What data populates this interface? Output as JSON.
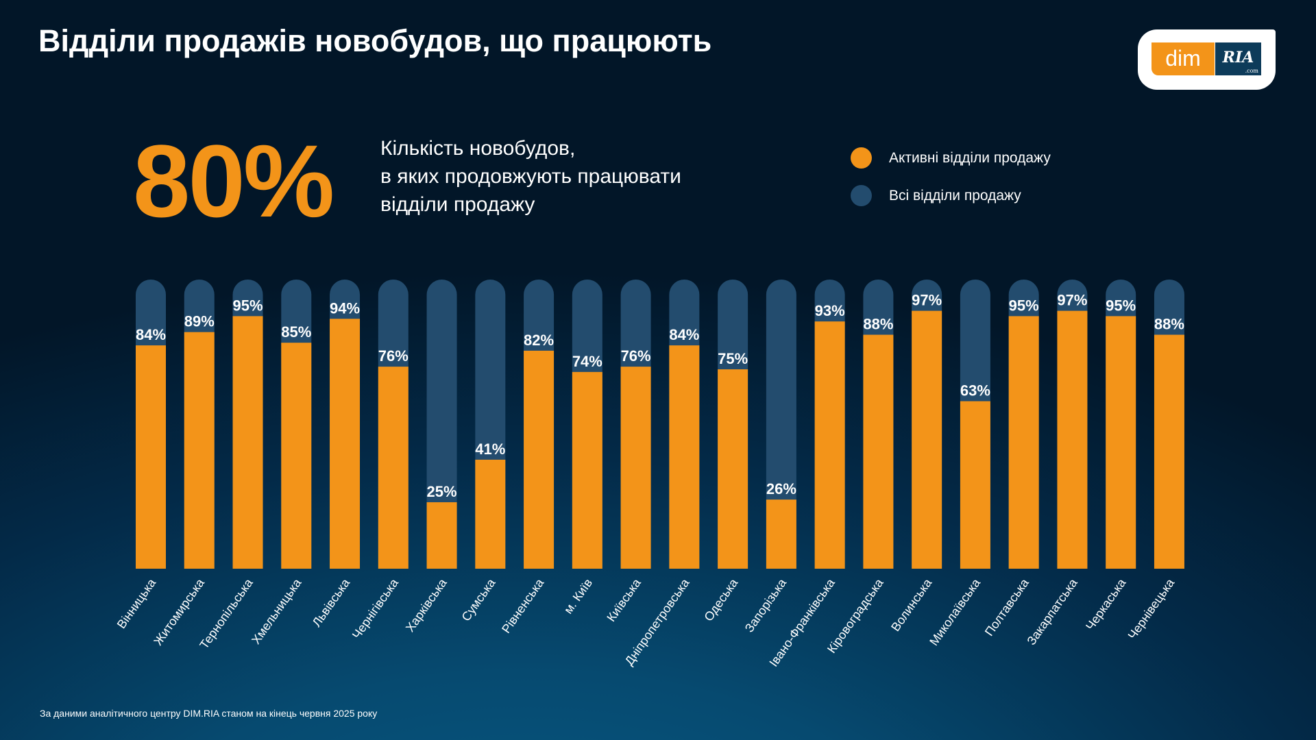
{
  "title": "Відділи продажів новобудов, що працюють",
  "logo": {
    "left": "dim",
    "right": "RIA",
    "suffix": ".com"
  },
  "headline": {
    "value": "80%",
    "lines": [
      "Кількість новобудов,",
      "в яких продовжують працювати",
      "відділи продажу"
    ]
  },
  "footer": "За даними аналітичного центру DIM.RIA станом на кінець червня 2025 року",
  "chart_data": {
    "type": "bar",
    "legend_placement": "top-right",
    "legend": [
      {
        "label": "Активні відділи продажу",
        "color": "#f39419"
      },
      {
        "label": "Всі відділи продажу",
        "color": "#234c6e"
      }
    ],
    "ylim": [
      0,
      100
    ],
    "categories": [
      "Вінницька",
      "Житомирська",
      "Тернопільська",
      "Хмельницька",
      "Львівська",
      "Чернігівська",
      "Харківська",
      "Сумська",
      "Рівненська",
      "м. Київ",
      "Київська",
      "Дніпропетровська",
      "Одеська",
      "Запорізька",
      "Івано-Франківська",
      "Кіровоградська",
      "Волинська",
      "Миколаївська",
      "Полтавська",
      "Закарпатська",
      "Черкаська",
      "Чернівецька"
    ],
    "values": [
      84,
      89,
      95,
      85,
      94,
      76,
      25,
      41,
      82,
      74,
      76,
      84,
      75,
      26,
      93,
      88,
      97,
      63,
      95,
      97,
      95,
      88
    ],
    "labels": [
      "84%",
      "89%",
      "95%",
      "85%",
      "94%",
      "76%",
      "25%",
      "41%",
      "82%",
      "74%",
      "76%",
      "84%",
      "75%",
      "26%",
      "93%",
      "88%",
      "97%",
      "63%",
      "95%",
      "97%",
      "95%",
      "88%"
    ]
  }
}
